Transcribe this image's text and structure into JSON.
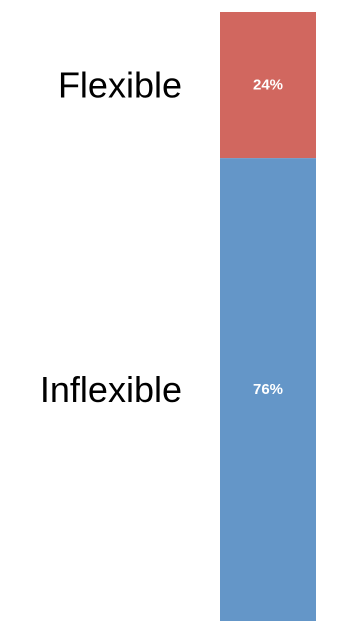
{
  "chart_data": {
    "type": "bar",
    "stacked": true,
    "orientation": "vertical",
    "percent": true,
    "categories": [
      ""
    ],
    "series": [
      {
        "name": "Flexible",
        "values": [
          24
        ],
        "label": "24%",
        "color": "#d1675f"
      },
      {
        "name": "Inflexible",
        "values": [
          76
        ],
        "label": "76%",
        "color": "#6496c8"
      }
    ],
    "ylim": [
      0,
      100
    ],
    "grid": false,
    "legend": "none"
  }
}
